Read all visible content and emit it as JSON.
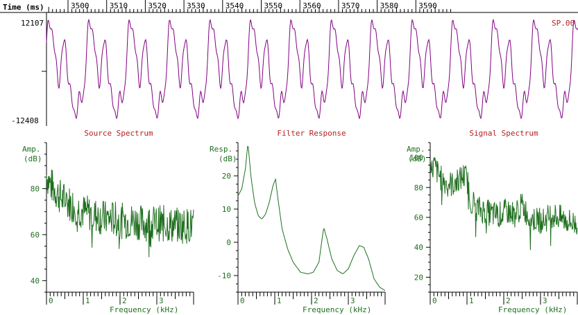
{
  "colors": {
    "waveform": "#800080",
    "spectrum": "#1f6f1f",
    "title": "#b22222",
    "axis": "#000000",
    "channel": "#b22222"
  },
  "waveform": {
    "time_label": "Time (ms)",
    "ticks": [
      3500,
      3510,
      3520,
      3530,
      3540,
      3550,
      3560,
      3570,
      3580,
      3590
    ],
    "y_top_label": "12107",
    "y_bottom_label": "-12408",
    "channel_label": "SP.00"
  },
  "chart_data": [
    {
      "type": "line",
      "title": "Source Spectrum",
      "xlabel": "Frequency (kHz)",
      "ylabel_line1": "Amp.",
      "ylabel_line2": "(dB)",
      "xlim": [
        0,
        4
      ],
      "ylim": [
        35,
        100
      ],
      "xticks": [
        0,
        1,
        2,
        3
      ],
      "yticks": [
        40,
        60,
        80
      ],
      "series": [
        {
          "x": [
            0,
            0.1,
            0.2,
            0.3,
            0.4,
            0.5,
            0.6,
            0.7,
            0.8,
            0.9,
            1.0,
            1.2,
            1.4,
            1.6,
            1.8,
            2.0,
            2.2,
            2.4,
            2.6,
            2.8,
            3.0,
            3.2,
            3.4,
            3.6,
            3.8,
            4.0
          ],
          "y": [
            86,
            82,
            80,
            78,
            76,
            75,
            74,
            73,
            72,
            71,
            70,
            69,
            68,
            67,
            67,
            66,
            66,
            66,
            65,
            65,
            65,
            65,
            64,
            64,
            64,
            64
          ],
          "noise": 8
        }
      ]
    },
    {
      "type": "line",
      "title": "Filter Response",
      "xlabel": "Frequency (kHz)",
      "ylabel_line1": "Resp.",
      "ylabel_line2": "(dB)",
      "xlim": [
        0,
        4
      ],
      "ylim": [
        -15,
        30
      ],
      "xticks": [
        0,
        1,
        2,
        3
      ],
      "yticks": [
        -10,
        0,
        10,
        20
      ],
      "series": [
        {
          "x": [
            0,
            0.1,
            0.2,
            0.27,
            0.35,
            0.45,
            0.55,
            0.65,
            0.75,
            0.85,
            0.95,
            1.02,
            1.1,
            1.2,
            1.35,
            1.5,
            1.7,
            1.9,
            2.05,
            2.2,
            2.33,
            2.42,
            2.55,
            2.7,
            2.85,
            3.0,
            3.15,
            3.3,
            3.42,
            3.55,
            3.7,
            3.85,
            4.0
          ],
          "y": [
            14,
            16,
            22,
            30,
            20,
            12,
            8,
            7,
            8.5,
            12,
            17,
            19,
            12,
            4,
            -2,
            -6,
            -9,
            -9.5,
            -9,
            -6,
            4.5,
            1,
            -5,
            -8.5,
            -9.5,
            -8,
            -4,
            -1,
            -1.5,
            -5,
            -11,
            -13.5,
            -14.5
          ],
          "noise": 0
        }
      ]
    },
    {
      "type": "line",
      "title": "Signal Spectrum",
      "xlabel": "Frequency (kHz)",
      "ylabel_line1": "Amp.",
      "ylabel_line2": "(dB)",
      "xlim": [
        0,
        4
      ],
      "ylim": [
        10,
        110
      ],
      "xticks": [
        0,
        1,
        2,
        3
      ],
      "yticks": [
        20,
        40,
        60,
        80,
        100
      ],
      "series": [
        {
          "x": [
            0,
            0.1,
            0.2,
            0.3,
            0.4,
            0.6,
            0.8,
            0.9,
            1.0,
            1.1,
            1.3,
            1.5,
            1.7,
            1.9,
            2.1,
            2.3,
            2.5,
            2.7,
            2.9,
            3.1,
            3.3,
            3.5,
            3.7,
            3.9,
            4.0
          ],
          "y": [
            88,
            95,
            90,
            86,
            84,
            82,
            85,
            88,
            86,
            72,
            66,
            64,
            62,
            62,
            64,
            62,
            68,
            60,
            58,
            58,
            62,
            60,
            58,
            56,
            56
          ],
          "noise": 9
        }
      ]
    }
  ]
}
